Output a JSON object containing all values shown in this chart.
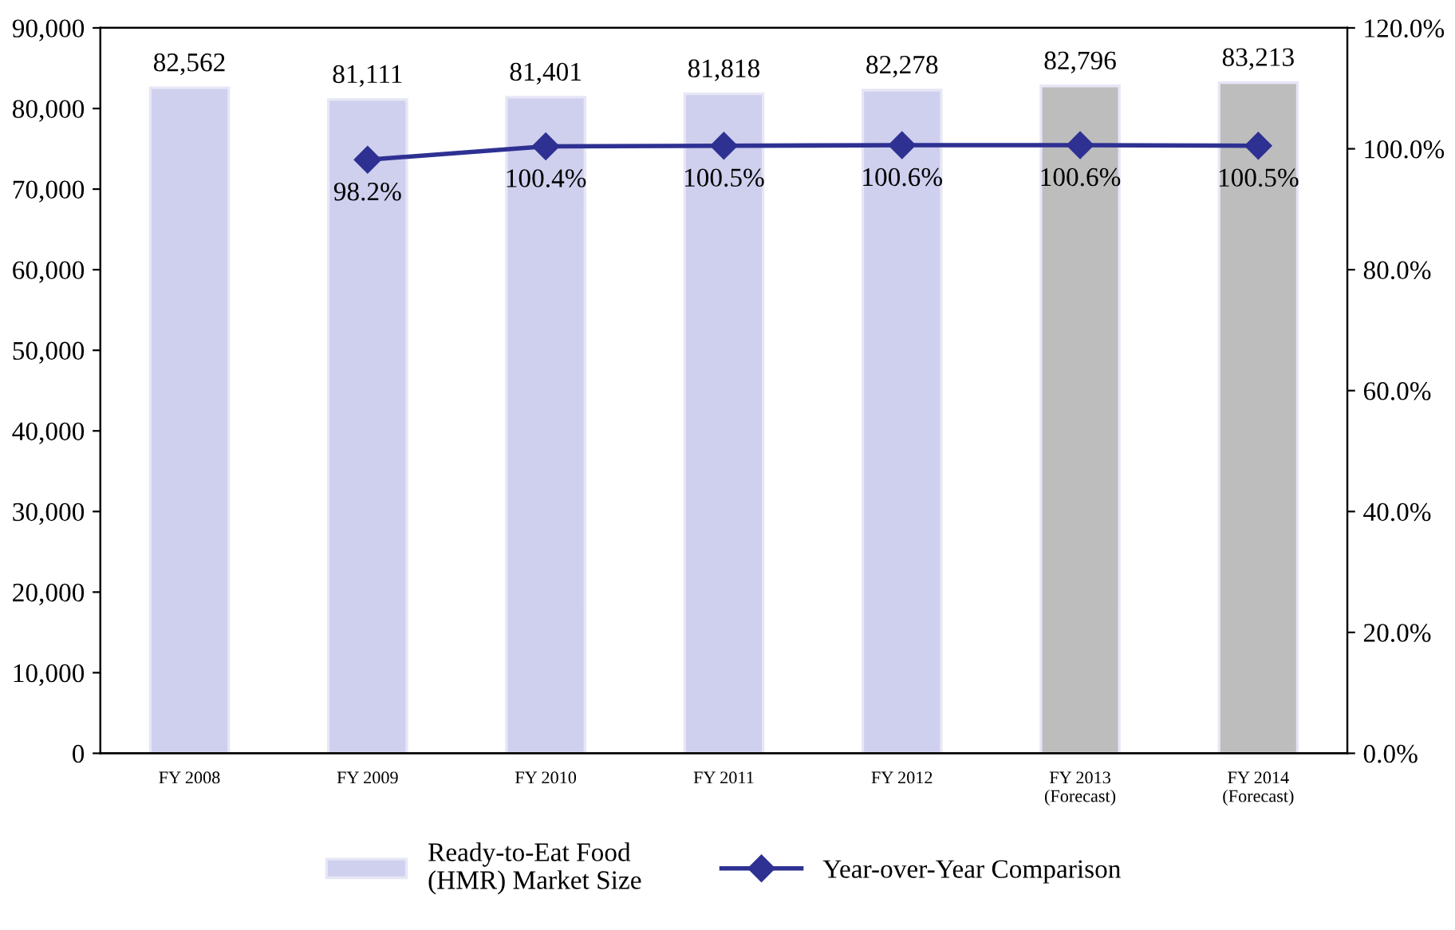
{
  "chart_data": {
    "type": "bar",
    "categories": [
      "FY 2008",
      "FY 2009",
      "FY 2010",
      "FY 2011",
      "FY 2012",
      "FY 2013\n(Forecast)",
      "FY 2014\n(Forecast)"
    ],
    "series": [
      {
        "name": "Ready-to-Eat Food\n(HMR) Market Size",
        "colors": [
          "#cfcfee",
          "#cfcfee",
          "#cfcfee",
          "#cfcfee",
          "#cfcfee",
          "#bdbdbd",
          "#bdbdbd"
        ],
        "values": [
          82562,
          81111,
          81401,
          81818,
          82278,
          82796,
          83213
        ],
        "value_labels": [
          "82,562",
          "81,111",
          "81,401",
          "81,818",
          "82,278",
          "82,796",
          "83,213"
        ]
      },
      {
        "name": "Year-over-Year Comparison",
        "type": "line",
        "axis": "y2",
        "color": "#2e3192",
        "marker": "diamond",
        "values": [
          null,
          98.2,
          100.4,
          100.5,
          100.6,
          100.6,
          100.5
        ],
        "value_labels": [
          null,
          "98.2%",
          "100.4%",
          "100.5%",
          "100.6%",
          "100.6%",
          "100.5%"
        ]
      }
    ],
    "ylim": [
      0,
      90000
    ],
    "yticks": [
      {
        "value": 0,
        "label": "0"
      },
      {
        "value": 10000,
        "label": "10,000"
      },
      {
        "value": 20000,
        "label": "20,000"
      },
      {
        "value": 30000,
        "label": "30,000"
      },
      {
        "value": 40000,
        "label": "40,000"
      },
      {
        "value": 50000,
        "label": "50,000"
      },
      {
        "value": 60000,
        "label": "60,000"
      },
      {
        "value": 70000,
        "label": "70,000"
      },
      {
        "value": 80000,
        "label": "80,000"
      },
      {
        "value": 90000,
        "label": "90,000"
      }
    ],
    "y2lim": [
      0,
      120
    ],
    "y2ticks": [
      {
        "value": 0,
        "label": "0.0%"
      },
      {
        "value": 20,
        "label": "20.0%"
      },
      {
        "value": 40,
        "label": "40.0%"
      },
      {
        "value": 60,
        "label": "60.0%"
      },
      {
        "value": 80,
        "label": "80.0%"
      },
      {
        "value": 100,
        "label": "100.0%"
      },
      {
        "value": 120,
        "label": "120.0%"
      }
    ],
    "legend": "bottom",
    "grid": false
  }
}
